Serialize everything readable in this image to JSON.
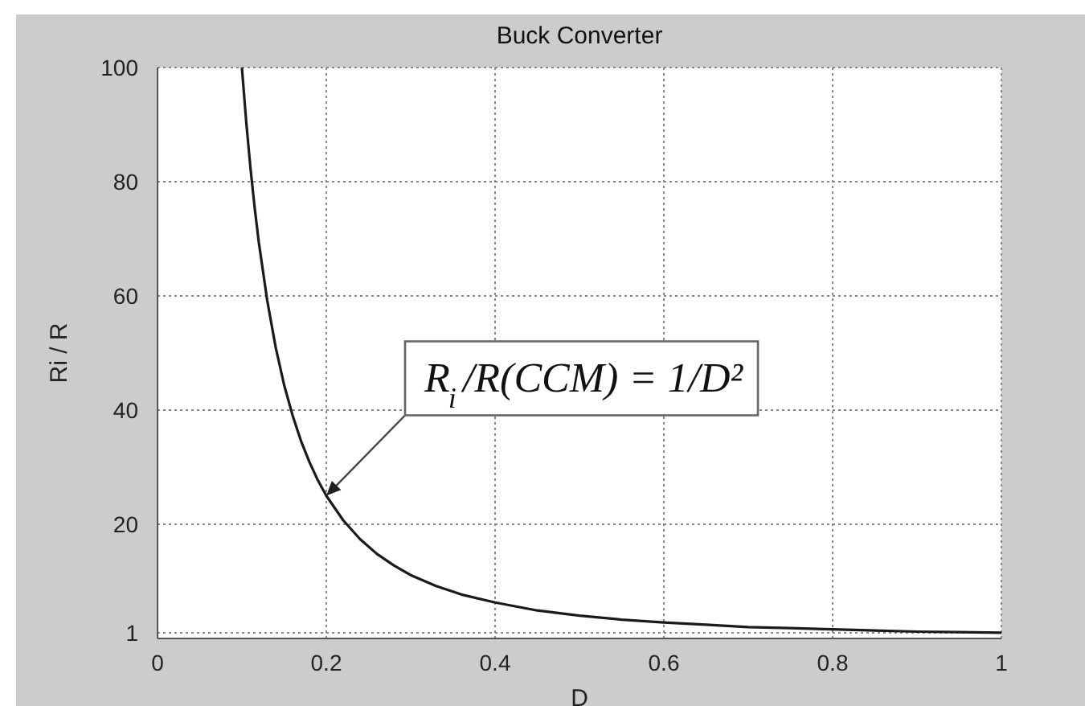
{
  "chart_data": {
    "type": "line",
    "title": "Buck Converter",
    "xlabel": "D",
    "ylabel": "Ri / R",
    "x": [
      0.1,
      0.105,
      0.11,
      0.115,
      0.12,
      0.13,
      0.14,
      0.15,
      0.16,
      0.17,
      0.18,
      0.19,
      0.2,
      0.22,
      0.24,
      0.26,
      0.28,
      0.3,
      0.33,
      0.36,
      0.4,
      0.45,
      0.5,
      0.55,
      0.6,
      0.65,
      0.7,
      0.75,
      0.8,
      0.85,
      0.9,
      0.95,
      1
    ],
    "values": [
      100,
      90.7,
      82.6,
      75.6,
      69.4,
      59.2,
      51.0,
      44.4,
      39.1,
      34.6,
      30.9,
      27.7,
      25,
      20.7,
      17.4,
      14.8,
      12.8,
      11.1,
      9.2,
      7.7,
      6.3,
      4.9,
      4.0,
      3.3,
      2.8,
      2.4,
      2.0,
      1.8,
      1.6,
      1.4,
      1.2,
      1.1,
      1.0
    ],
    "color": "#1a1a1a",
    "xlim": [
      0,
      1
    ],
    "xticks": [
      0,
      0.2,
      0.4,
      0.6,
      0.8,
      1
    ],
    "ylim": [
      0,
      100
    ],
    "yticks": [
      1,
      20,
      40,
      60,
      80,
      100
    ],
    "grid": true,
    "annotations": [
      {
        "text": "R$_{i}$/R(CCM) = 1/D²",
        "x": 0.2,
        "y": 25
      }
    ]
  }
}
